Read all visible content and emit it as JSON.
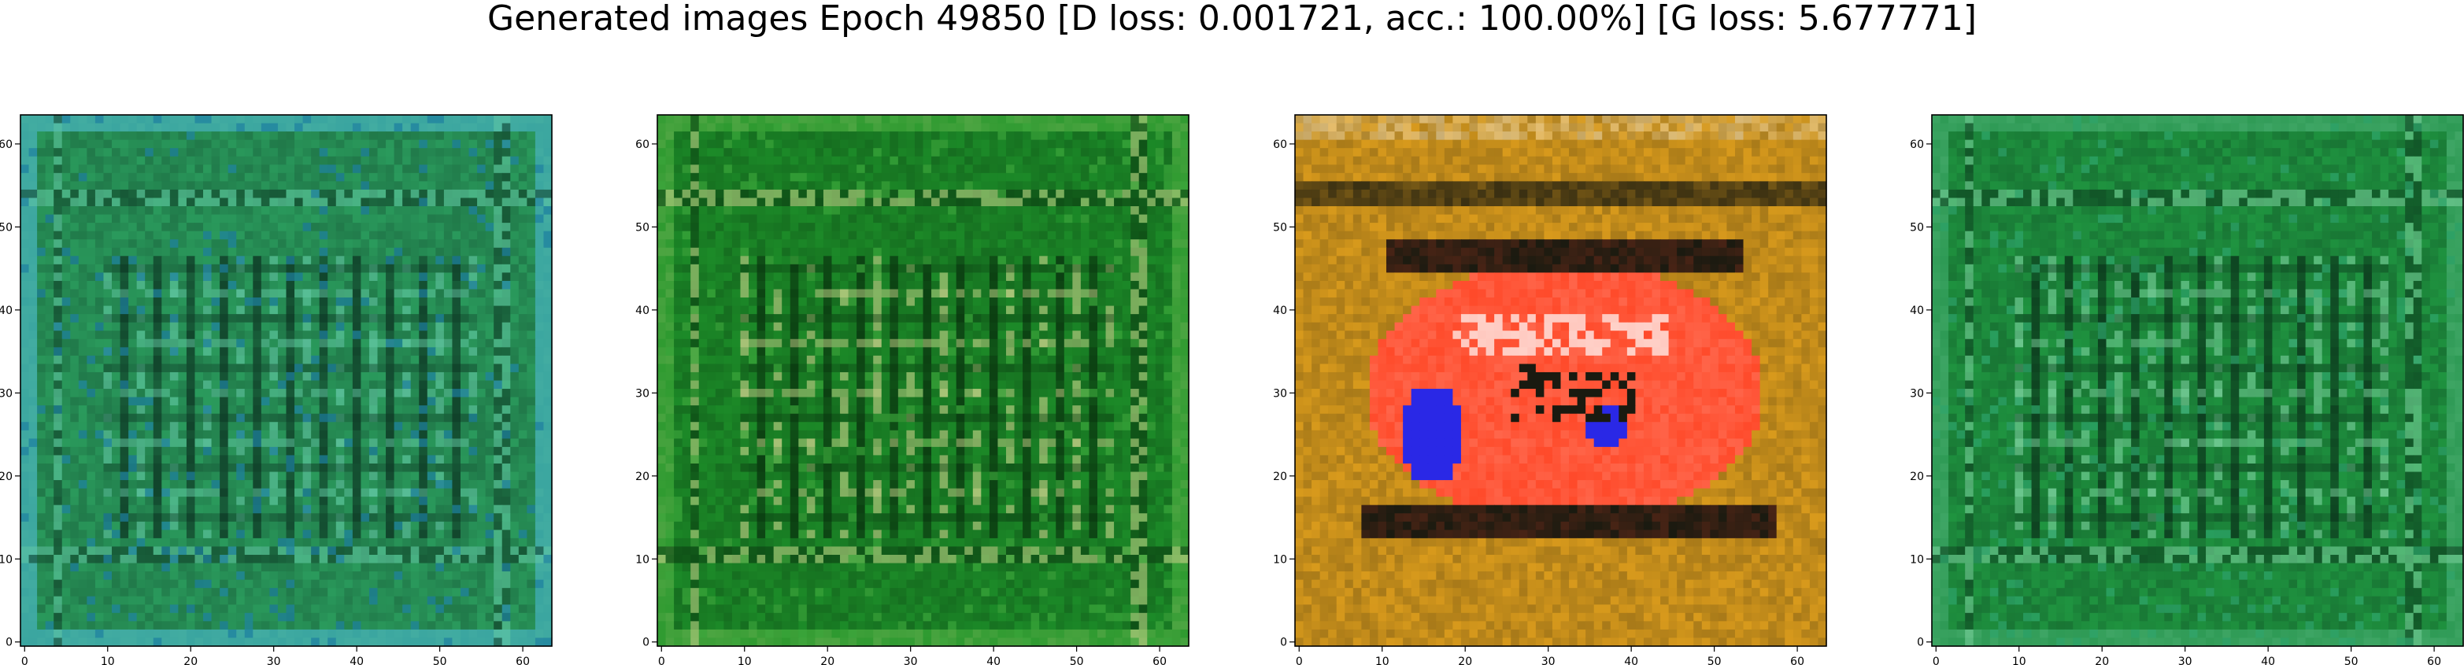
{
  "figure": {
    "suptitle": "Generated images Epoch 49850 [D loss: 0.001721, acc.: 100.00%] [G loss: 5.677771]"
  },
  "chart_data": [
    {
      "type": "heatmap",
      "title": "",
      "xlabel": "",
      "ylabel": "",
      "xlim": [
        -0.5,
        63.5
      ],
      "ylim": [
        63.5,
        -0.5
      ],
      "xticks": [
        0,
        10,
        20,
        30,
        40,
        50,
        60
      ],
      "yticks": [
        0,
        10,
        20,
        30,
        40,
        50,
        60
      ],
      "grid": false,
      "image_theme": "teal-green grid texture",
      "colors": {
        "base": "#2a9a5c",
        "dark": "#0f3e28",
        "light": "#63c9a5",
        "accent": "#1d7fa0",
        "border": "#3aa5a0"
      }
    },
    {
      "type": "heatmap",
      "title": "",
      "xlabel": "",
      "ylabel": "",
      "xlim": [
        -0.5,
        63.5
      ],
      "ylim": [
        63.5,
        -0.5
      ],
      "xticks": [
        0,
        10,
        20,
        30,
        40,
        50,
        60
      ],
      "yticks": [
        0,
        10,
        20,
        30,
        40,
        50,
        60
      ],
      "grid": false,
      "image_theme": "dark green grid texture",
      "colors": {
        "base": "#1c8a28",
        "dark": "#0a3a10",
        "light": "#c9d28a",
        "accent": "#3aa53a",
        "border": "#2e9a30"
      }
    },
    {
      "type": "heatmap",
      "title": "",
      "xlabel": "",
      "ylabel": "",
      "xlim": [
        -0.5,
        63.5
      ],
      "ylim": [
        63.5,
        -0.5
      ],
      "xticks": [
        0,
        10,
        20,
        30,
        40,
        50,
        60
      ],
      "yticks": [
        0,
        10,
        20,
        30,
        40,
        50,
        60
      ],
      "grid": false,
      "image_theme": "orange frame with red center blob",
      "colors": {
        "base": "#d89a1c",
        "dark": "#1a1a10",
        "light": "#ffffff",
        "accent": "#ff4a2a",
        "blue": "#2a28e6"
      }
    },
    {
      "type": "heatmap",
      "title": "",
      "xlabel": "",
      "ylabel": "",
      "xlim": [
        -0.5,
        63.5
      ],
      "ylim": [
        63.5,
        -0.5
      ],
      "xticks": [
        0,
        10,
        20,
        30,
        40,
        50,
        60
      ],
      "yticks": [
        0,
        10,
        20,
        30,
        40,
        50,
        60
      ],
      "grid": false,
      "image_theme": "green grid texture",
      "colors": {
        "base": "#1f9440",
        "dark": "#0c3c1e",
        "light": "#7dd3a0",
        "accent": "#2da36a",
        "border": "#2e9a55"
      }
    }
  ]
}
